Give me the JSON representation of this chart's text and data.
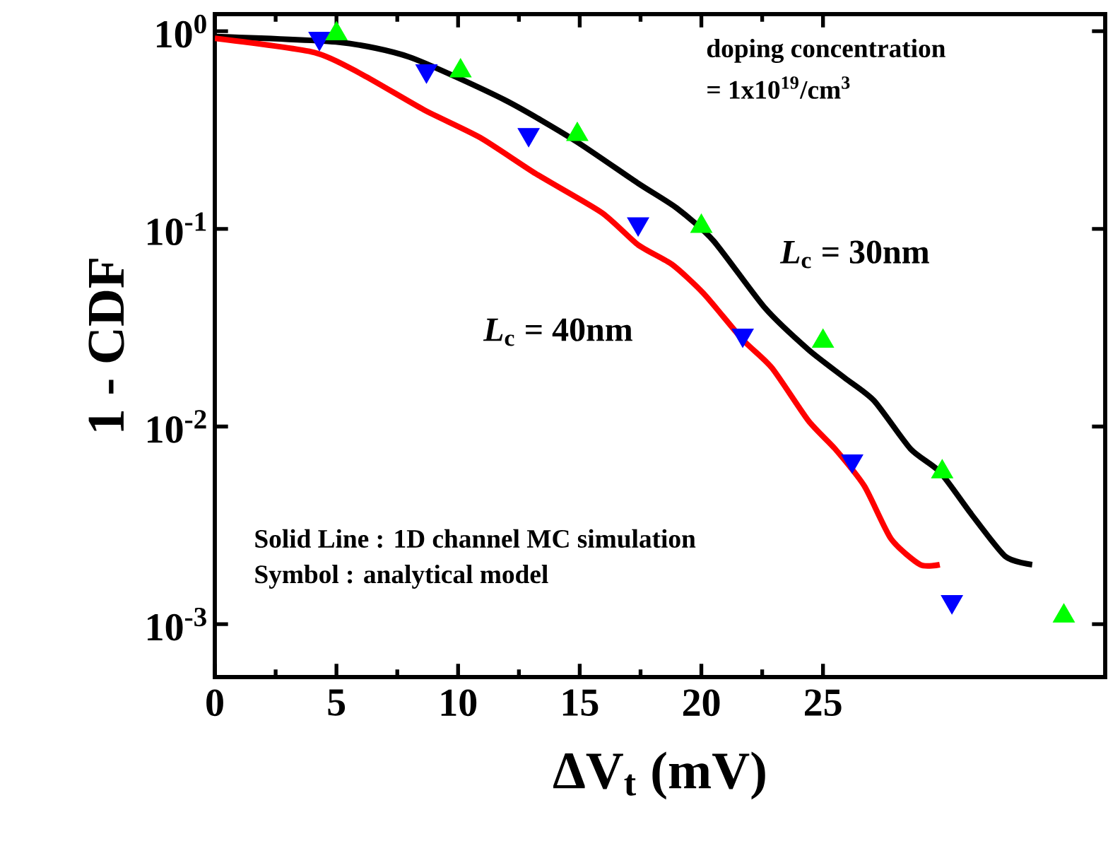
{
  "chart_data": {
    "type": "line",
    "xlabel": "ΔV$_{t}$ (mV)",
    "ylabel": "1 - CDF",
    "log": "y",
    "grid": false,
    "legend": false,
    "xlim": [
      0,
      36.6
    ],
    "ylim": [
      0.00054,
      1.22
    ],
    "xticks": [
      0,
      5,
      10,
      15,
      20,
      25
    ],
    "yticks": [
      {
        "value": 0.001,
        "label": "10$^{-3}$"
      },
      {
        "value": 0.01,
        "label": "10$^{-2}$"
      },
      {
        "value": 0.1,
        "label": "10$^{-1}$"
      },
      {
        "value": 1,
        "label": "10$^{0}$"
      }
    ],
    "series": [
      {
        "name": "*L*$_{c}$ = 30nm",
        "color": "#000000",
        "line_style": "solid",
        "x": [
          0,
          5.1,
          8.0,
          11.9,
          14.8,
          17.4,
          19.0,
          20.5,
          22.6,
          24.4,
          25.9,
          27.1,
          28.6,
          29.8,
          31.1,
          32.5,
          33.6
        ],
        "values": [
          0.94,
          0.88,
          0.74,
          0.45,
          0.28,
          0.17,
          0.127,
          0.087,
          0.04,
          0.0245,
          0.0176,
          0.0135,
          0.0077,
          0.0059,
          0.0036,
          0.0022,
          0.002
        ]
      },
      {
        "name": "*L*$_{c}$ = 40nm",
        "color": "#ff0000",
        "line_style": "solid",
        "x": [
          0,
          4.1,
          6.1,
          8.6,
          10.9,
          13.2,
          15.9,
          17.4,
          18.8,
          20.1,
          21.7,
          22.9,
          24.4,
          25.5,
          26.7,
          27.8,
          29.0,
          29.8
        ],
        "values": [
          0.92,
          0.78,
          0.6,
          0.4,
          0.29,
          0.19,
          0.121,
          0.083,
          0.066,
          0.047,
          0.0275,
          0.0198,
          0.0107,
          0.0077,
          0.005,
          0.0027,
          0.002,
          0.002
        ]
      },
      {
        "type": "scatter",
        "marker": "triangle",
        "color": "#0000ff",
        "x": [
          4.3,
          8.7,
          12.9,
          17.4,
          21.7,
          26.2,
          30.3
        ],
        "values": [
          0.92,
          0.63,
          0.3,
          0.106,
          0.029,
          0.0067,
          0.0013
        ]
      },
      {
        "type": "scatter",
        "marker": "triangle",
        "color": "#00ff00",
        "x": [
          5.0,
          10.1,
          14.9,
          20.0,
          25.0,
          29.9,
          34.9
        ],
        "values": [
          0.97,
          0.63,
          0.3,
          0.103,
          0.027,
          0.0059,
          0.0011
        ]
      }
    ],
    "annotations": [
      "doping concentration",
      "= 1x10$^{19}$/cm$^{3}$",
      "Solid Line :  1D channel MC simulation",
      "Symbol :  analytical model"
    ]
  }
}
